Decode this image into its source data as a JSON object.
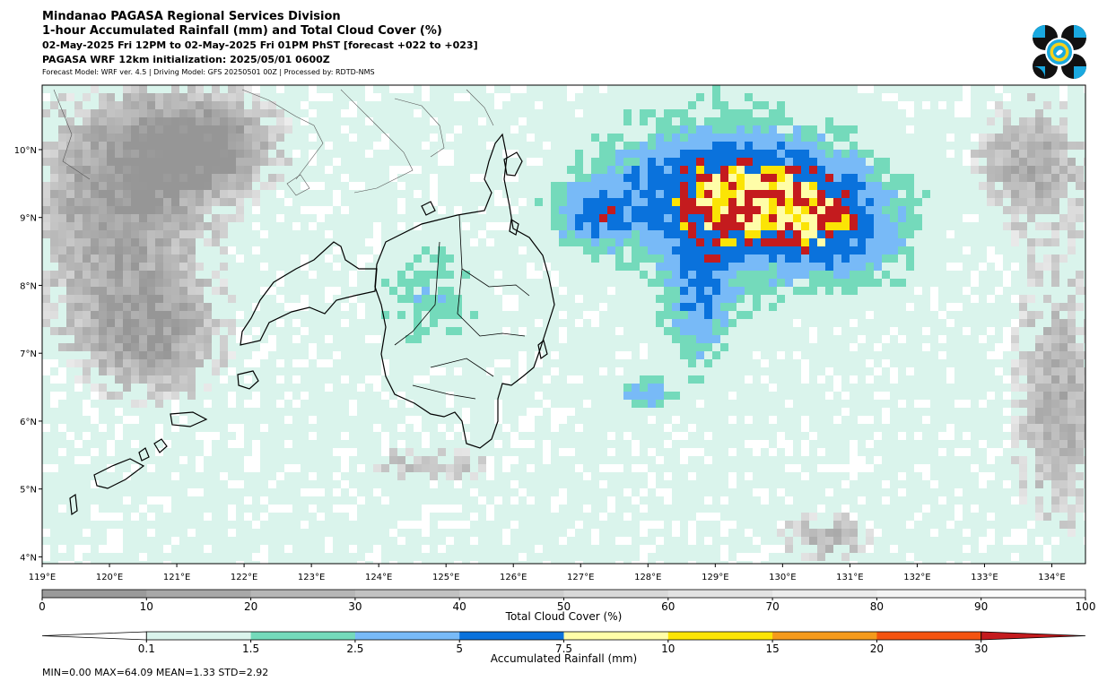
{
  "header": {
    "line1": "Mindanao PAGASA Regional Services Division",
    "line2": "1-hour Accumulated Rainfall (mm) and Total Cloud Cover (%)",
    "line3": "02-May-2025 Fri 12PM to 02-May-2025 Fri 01PM PhST [forecast +022 to +023]",
    "line4": "PAGASA WRF 12km initialization: 2025/05/01 0600Z",
    "line5": "Forecast Model: WRF ver. 4.5 | Driving Model: GFS 20250501 00Z | Processed by: RDTD-NMS"
  },
  "map": {
    "lon_range": [
      119,
      134.5
    ],
    "lat_range": [
      3.9,
      10.95
    ],
    "lon_ticks": [
      "119°E",
      "120°E",
      "121°E",
      "122°E",
      "123°E",
      "124°E",
      "125°E",
      "126°E",
      "127°E",
      "128°E",
      "129°E",
      "130°E",
      "131°E",
      "132°E",
      "133°E",
      "134°E"
    ],
    "lat_ticks": [
      "4°N",
      "5°N",
      "6°N",
      "7°N",
      "8°N",
      "9°N",
      "10°N"
    ]
  },
  "cloud_colorbar": {
    "label": "Total Cloud Cover (%)",
    "ticks": [
      "0",
      "10",
      "20",
      "30",
      "40",
      "50",
      "60",
      "70",
      "80",
      "90",
      "100"
    ],
    "colors": [
      "#9a9a9a",
      "#a8a8a8",
      "#b6b6b6",
      "#c2c2c2",
      "#cecece",
      "#d9d9d9",
      "#e3e3e3",
      "#ececec",
      "#f4f4f4",
      "#fbfbfb"
    ]
  },
  "rain_colorbar": {
    "label": "Accumulated Rainfall (mm)",
    "ticks": [
      "0.1",
      "1.5",
      "2.5",
      "5",
      "7.5",
      "10",
      "15",
      "20",
      "30"
    ],
    "colors": [
      "#daf4ec",
      "#74dabb",
      "#78baf7",
      "#0a72dc",
      "#fffda8",
      "#fbe405",
      "#f59a1b",
      "#f3530f",
      "#c41b1e"
    ]
  },
  "stats": "MIN=0.00   MAX=64.09   MEAN=1.33   STD=2.92"
}
